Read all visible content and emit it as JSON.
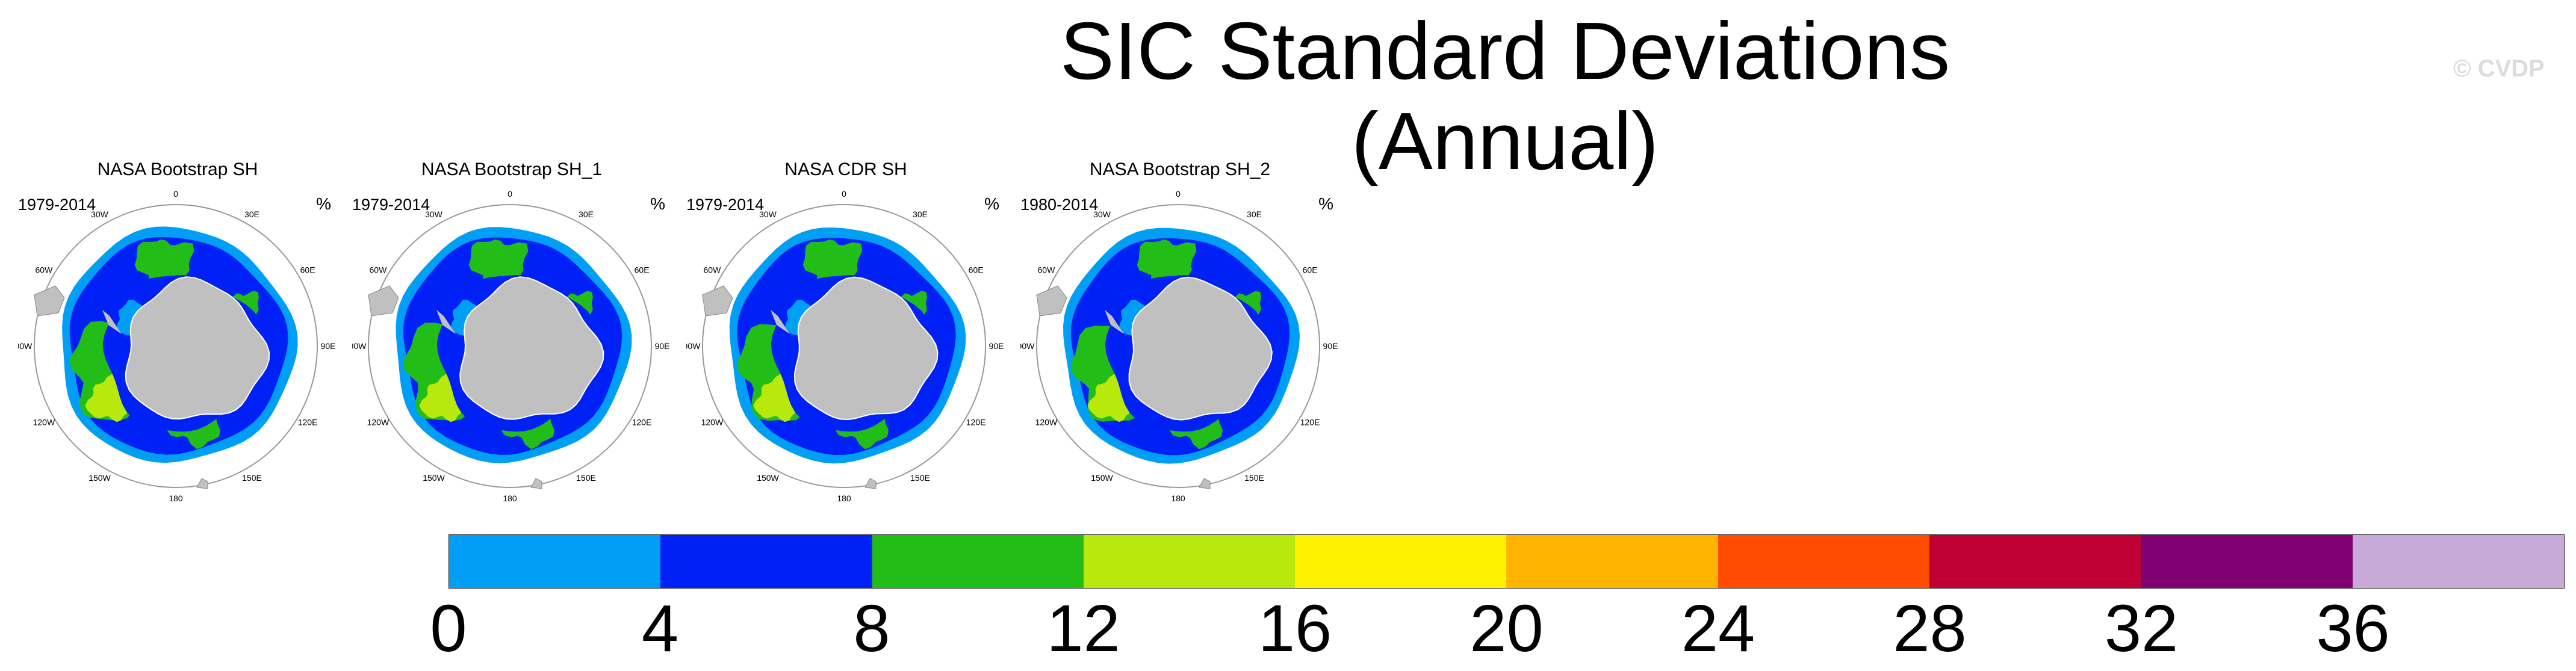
{
  "figure": {
    "title": "SIC Standard Deviations (Annual)",
    "copyright": "© CVDP"
  },
  "panels": [
    {
      "title": "NASA Bootstrap SH",
      "period": "1979-2014",
      "unit": "%"
    },
    {
      "title": "NASA Bootstrap SH_1",
      "period": "1979-2014",
      "unit": "%"
    },
    {
      "title": "NASA CDR SH",
      "period": "1979-2014",
      "unit": "%"
    },
    {
      "title": "NASA Bootstrap SH_2",
      "period": "1980-2014",
      "unit": "%"
    }
  ],
  "map_labels": {
    "lon_0": "0",
    "lon_30e": "30E",
    "lon_60e": "60E",
    "lon_90e": "90E",
    "lon_120e": "120E",
    "lon_150e": "150E",
    "lon_180": "180",
    "lon_150w": "150W",
    "lon_120w": "120W",
    "lon_90w": "90W",
    "lon_60w": "60W",
    "lon_30w": "30W"
  },
  "colorbar": {
    "labels": [
      "0",
      "4",
      "8",
      "12",
      "16",
      "20",
      "24",
      "28",
      "32",
      "36"
    ],
    "colors": [
      "#009ff5",
      "#0021f5",
      "#23bd17",
      "#b8e80c",
      "#fef200",
      "#ffb400",
      "#ff4b00",
      "#be0034",
      "#800072",
      "#c7aad8"
    ]
  },
  "map_colors": {
    "land": "#c0c0c0",
    "sd_0_4": "#009ff5",
    "sd_4_8": "#0021f5",
    "sd_8_12": "#23bd17",
    "sd_12_16": "#b8e80c"
  }
}
